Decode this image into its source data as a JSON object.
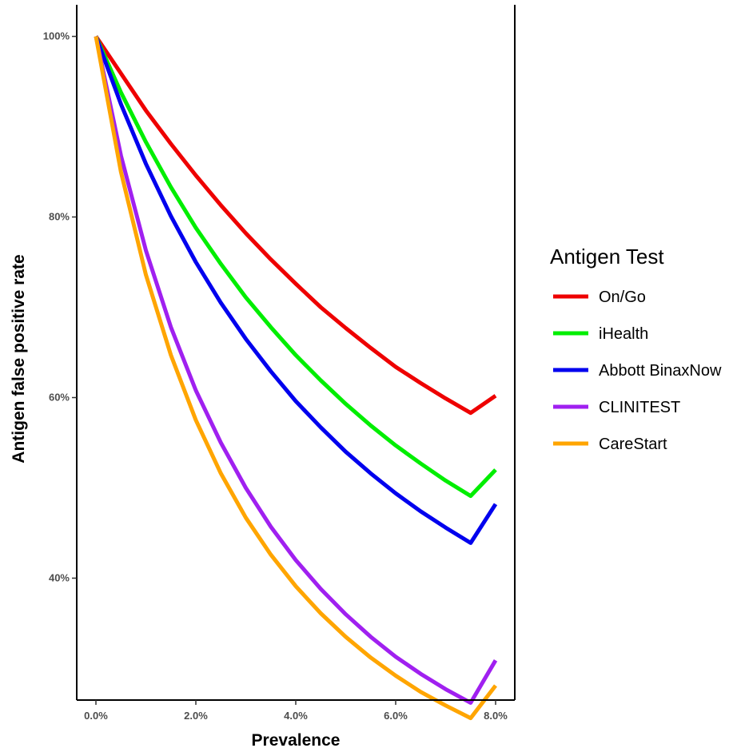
{
  "chart_data": {
    "type": "line",
    "xlabel": "Prevalence",
    "ylabel": "Antigen false positive rate",
    "x_ticks": [
      "0.0%",
      "2.0%",
      "4.0%",
      "6.0%",
      "8.0%"
    ],
    "y_ticks": [
      "40%",
      "60%",
      "80%",
      "100%"
    ],
    "xlim": [
      0,
      8
    ],
    "ylim": [
      26.5,
      103.5
    ],
    "x_tick_values": [
      0,
      2,
      4,
      6,
      8
    ],
    "y_tick_values": [
      40,
      60,
      80,
      100
    ],
    "legend": {
      "title": "Antigen Test",
      "position": "right"
    },
    "x": [
      0,
      0.5,
      1,
      1.5,
      2,
      2.5,
      3,
      3.5,
      4,
      4.5,
      5,
      5.5,
      6,
      6.5,
      7,
      7.5,
      8
    ],
    "series": [
      {
        "name": "On/Go",
        "color": "#ee0000",
        "values": [
          100,
          95.9,
          91.8,
          88.1,
          84.6,
          81.3,
          78.2,
          75.3,
          72.6,
          70.0,
          67.7,
          65.5,
          63.4,
          61.6,
          59.9,
          58.3,
          60.2
        ]
      },
      {
        "name": "iHealth",
        "color": "#00ee00",
        "values": [
          100,
          93.8,
          88.3,
          83.3,
          78.8,
          74.8,
          71.1,
          67.8,
          64.7,
          61.9,
          59.3,
          56.9,
          54.7,
          52.7,
          50.8,
          49.1,
          52.0
        ]
      },
      {
        "name": "Abbott BinaxNow",
        "color": "#0000ee",
        "values": [
          100,
          92.5,
          85.9,
          80.1,
          75.0,
          70.5,
          66.5,
          62.9,
          59.6,
          56.7,
          54.0,
          51.6,
          49.4,
          47.4,
          45.6,
          43.9,
          48.2
        ]
      },
      {
        "name": "CLINITEST",
        "color": "#a020f0",
        "values": [
          100,
          86.8,
          76.3,
          67.8,
          60.8,
          55.0,
          50.0,
          45.7,
          42.0,
          38.8,
          36.0,
          33.5,
          31.3,
          29.4,
          27.7,
          26.2,
          30.9
        ]
      },
      {
        "name": "CareStart",
        "color": "#ffa500",
        "values": [
          100,
          85.0,
          73.6,
          64.7,
          57.5,
          51.6,
          46.7,
          42.6,
          39.1,
          36.1,
          33.5,
          31.2,
          29.2,
          27.4,
          25.9,
          24.5,
          28.1
        ]
      }
    ]
  }
}
